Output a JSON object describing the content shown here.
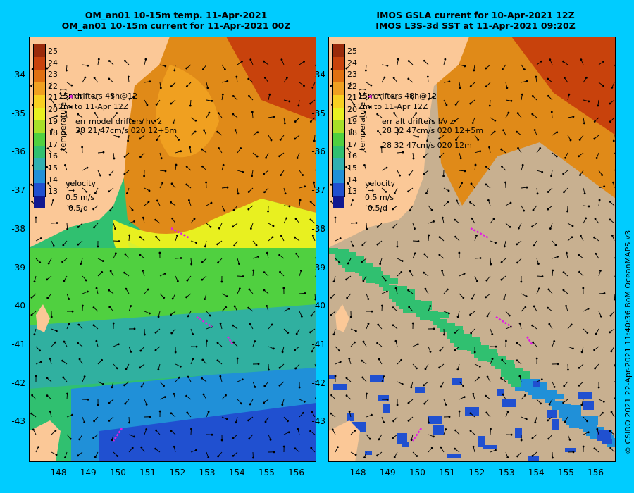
{
  "left_title": {
    "line1": "OM_an01 10-15m temp. 11-Apr-2021",
    "line2": "OM_an01 10-15m current for 11-Apr-2021 00Z"
  },
  "right_title": {
    "line1": "IMOS GSLA current for 10-Apr-2021 12Z",
    "line2": "IMOS L3S-3d SST at 11-Apr-2021 09:20Z"
  },
  "y_ticks": [
    "-34",
    "-35",
    "-36",
    "-37",
    "-38",
    "-39",
    "-40",
    "-41",
    "-42",
    "-43"
  ],
  "x_ticks": [
    "148",
    "149",
    "150",
    "151",
    "152",
    "153",
    "154",
    "155",
    "156"
  ],
  "colorbar": {
    "title": "temperature (C)",
    "labels": [
      "25",
      "24",
      "23",
      "22",
      "21",
      "20",
      "19",
      "18",
      "17",
      "16",
      "15",
      "14",
      "13"
    ],
    "colors": [
      "#9a2a0a",
      "#c8420c",
      "#e07010",
      "#f0a020",
      "#f8d020",
      "#e8f020",
      "#a8e028",
      "#50d040",
      "#30c070",
      "#30b0b0",
      "#2090d8",
      "#2050d0",
      "#101890"
    ]
  },
  "left_legend": {
    "drifters": "drifters 48h@12",
    "to": "to 11-Apr 12Z",
    "err": "err model drifters hv z",
    "err_values": "38 21 47cm/s 020 12+5m",
    "velocity": "velocity",
    "speed": "0.5 m/s",
    "duration": "0.5 d",
    "marker_label": "15m",
    "marker_label2": "2m"
  },
  "right_legend": {
    "drifters": "drifters 48h@12",
    "to": "to 11-Apr 12Z",
    "err": "err alt drifters hv z",
    "err_values": "28 32 47cm/s 020 12+5m",
    "err_values2": "28 32 47cm/s 020 12m",
    "velocity": "velocity",
    "speed": "0.5 m/s",
    "duration": "0.5 d",
    "marker_label": "15m",
    "marker_label2": "2m"
  },
  "credit": "© CSIRO 2021   22-Apr-2021 11:40:36 BoM OceanMAPS v3",
  "colors": {
    "background": "#00ccff",
    "land": "#fbc897",
    "nodata": "#c8b090"
  }
}
